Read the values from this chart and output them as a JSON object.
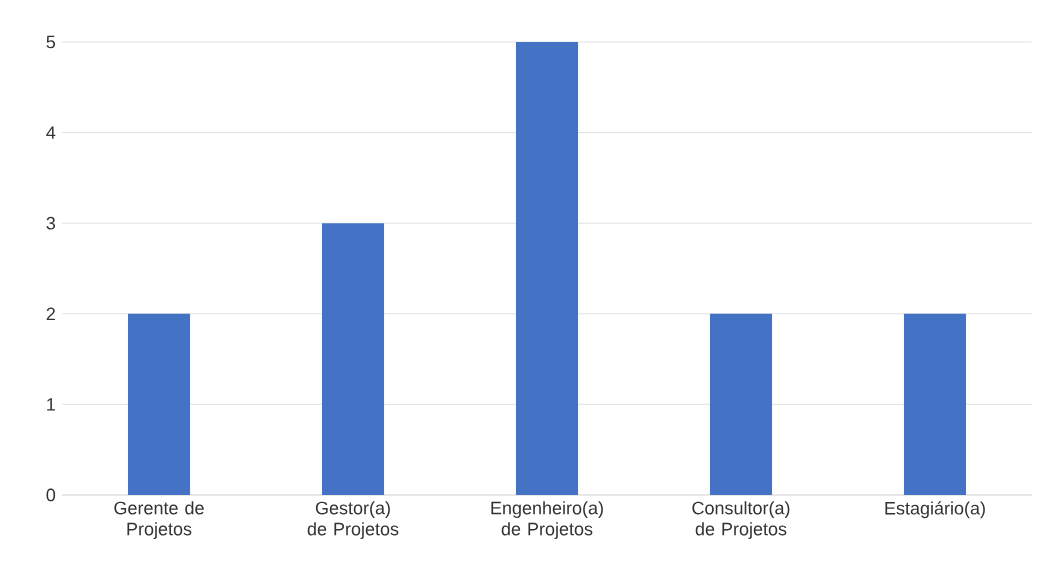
{
  "chart_data": {
    "type": "bar",
    "categories": [
      "Gerente de Projetos",
      "Gestor(a) de Projetos",
      "Engenheiro(a) de Projetos",
      "Consultor(a) de Projetos",
      "Estagiário(a)"
    ],
    "values": [
      2,
      3,
      5,
      2,
      2
    ],
    "color": "#4472c4",
    "ylim": [
      0,
      5
    ],
    "yticks": [
      0,
      1,
      2,
      3,
      4,
      5
    ],
    "grid": "y"
  }
}
